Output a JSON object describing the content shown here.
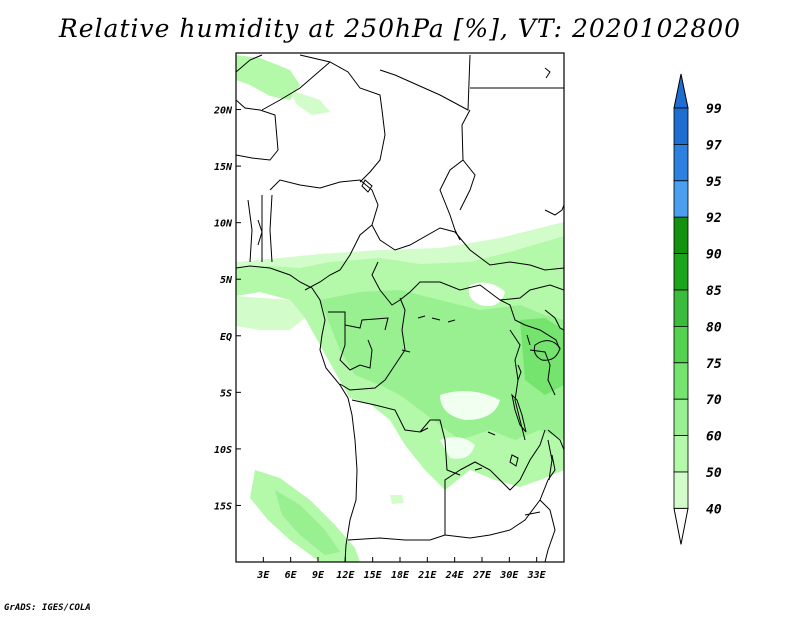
{
  "title": "Relative humidity at 250hPa [%], VT: 2020102800",
  "footer": "GrADS: IGES/COLA",
  "map": {
    "lon_range": [
      0,
      36
    ],
    "lat_range": [
      -20,
      25
    ],
    "lon_ticks": [
      {
        "value": 3,
        "label": "3E"
      },
      {
        "value": 6,
        "label": "6E"
      },
      {
        "value": 9,
        "label": "9E"
      },
      {
        "value": 12,
        "label": "12E"
      },
      {
        "value": 15,
        "label": "15E"
      },
      {
        "value": 18,
        "label": "18E"
      },
      {
        "value": 21,
        "label": "21E"
      },
      {
        "value": 24,
        "label": "24E"
      },
      {
        "value": 27,
        "label": "27E"
      },
      {
        "value": 30,
        "label": "30E"
      },
      {
        "value": 33,
        "label": "33E"
      }
    ],
    "lat_ticks": [
      {
        "value": 20,
        "label": "20N"
      },
      {
        "value": 15,
        "label": "15N"
      },
      {
        "value": 10,
        "label": "10N"
      },
      {
        "value": 5,
        "label": "5N"
      },
      {
        "value": 0,
        "label": "EQ"
      },
      {
        "value": -5,
        "label": "5S"
      },
      {
        "value": -10,
        "label": "10S"
      },
      {
        "value": -15,
        "label": "15S"
      }
    ],
    "colors": {
      "land_border": "#000000",
      "frame": "#000000"
    }
  },
  "colorbar": {
    "levels": [
      {
        "label": "99",
        "color": "#1e6ed2"
      },
      {
        "label": "97",
        "color": "#2c80e0"
      },
      {
        "label": "95",
        "color": "#4aa0ee"
      },
      {
        "label": "92",
        "color": "#13920f"
      },
      {
        "label": "90",
        "color": "#1ca41c"
      },
      {
        "label": "85",
        "color": "#3cbc3c"
      },
      {
        "label": "80",
        "color": "#52d24e"
      },
      {
        "label": "75",
        "color": "#74e46e"
      },
      {
        "label": "70",
        "color": "#98f090"
      },
      {
        "label": "60",
        "color": "#b4f8aa"
      },
      {
        "label": "50",
        "color": "#d2fcca"
      },
      {
        "label": "40",
        "color": "#f0fff0"
      }
    ],
    "top_cap_color": "#1e6ed2",
    "bottom_cap_color": "#ffffff"
  }
}
